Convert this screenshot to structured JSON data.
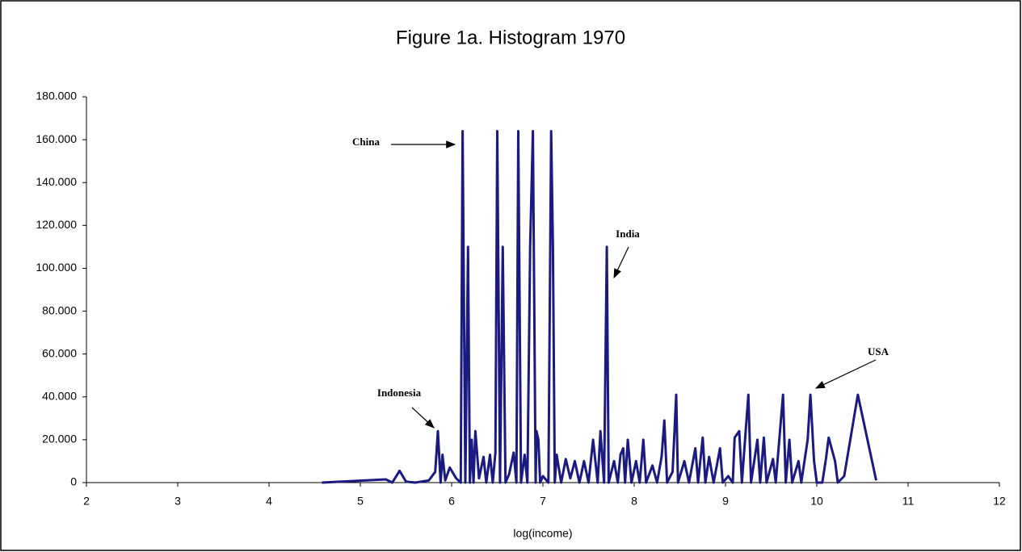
{
  "chart_data": {
    "type": "line",
    "title": "Figure 1a. Histogram 1970",
    "x_label": "log(income)",
    "x": [
      4.58,
      5.28,
      5.35,
      5.43,
      5.5,
      5.6,
      5.75,
      5.82,
      5.85,
      5.88,
      5.9,
      5.93,
      5.98,
      6.05,
      6.1,
      6.12,
      6.15,
      6.18,
      6.2,
      6.22,
      6.24,
      6.26,
      6.3,
      6.35,
      6.38,
      6.42,
      6.45,
      6.48,
      6.5,
      6.53,
      6.56,
      6.59,
      6.63,
      6.68,
      6.71,
      6.73,
      6.76,
      6.8,
      6.83,
      6.86,
      6.89,
      6.92,
      6.93,
      6.95,
      6.97,
      7.0,
      7.06,
      7.09,
      7.11,
      7.13,
      7.15,
      7.2,
      7.25,
      7.3,
      7.35,
      7.4,
      7.45,
      7.5,
      7.55,
      7.6,
      7.63,
      7.67,
      7.7,
      7.72,
      7.78,
      7.82,
      7.85,
      7.88,
      7.9,
      7.93,
      7.97,
      8.02,
      8.06,
      8.1,
      8.13,
      8.2,
      8.25,
      8.3,
      8.33,
      8.36,
      8.42,
      8.46,
      8.48,
      8.55,
      8.6,
      8.67,
      8.7,
      8.75,
      8.78,
      8.82,
      8.87,
      8.94,
      8.97,
      9.03,
      9.08,
      9.1,
      9.15,
      9.18,
      9.25,
      9.28,
      9.35,
      9.38,
      9.42,
      9.45,
      9.52,
      9.55,
      9.63,
      9.66,
      9.7,
      9.73,
      9.8,
      9.83,
      9.9,
      9.93,
      9.97,
      10.0,
      10.06,
      10.1,
      10.13,
      10.2,
      10.23,
      10.3,
      10.45,
      10.65
    ],
    "series": [
      {
        "color": "#1a1a80",
        "values": [
          0,
          1.5,
          0,
          5.5,
          0.5,
          0,
          1,
          5,
          24,
          0,
          13,
          1,
          7,
          2,
          0,
          164,
          0,
          110,
          0,
          20,
          0,
          24,
          2,
          12,
          0,
          13,
          0,
          14,
          164,
          0,
          110,
          0,
          4,
          14,
          0,
          164,
          0,
          13,
          0,
          110,
          164,
          0,
          24,
          20,
          0,
          3,
          0,
          164,
          110,
          0,
          13,
          0,
          11,
          2,
          10,
          0,
          10,
          0,
          20,
          0,
          24,
          0,
          110,
          0,
          10,
          0,
          13,
          16,
          0,
          20,
          0,
          10,
          0,
          20,
          0,
          8,
          0,
          12,
          29,
          0,
          5,
          41,
          0,
          10,
          0,
          16,
          0,
          21,
          0,
          12,
          0,
          16,
          0,
          3,
          0,
          21,
          24,
          0,
          41,
          0,
          20,
          0,
          21,
          0,
          11,
          0,
          41,
          0,
          20,
          0,
          10,
          0,
          20,
          41,
          10,
          0,
          0,
          11,
          21,
          10,
          0,
          3,
          41,
          1
        ]
      }
    ],
    "xlim": [
      2,
      12
    ],
    "xticks": [
      2,
      3,
      4,
      5,
      6,
      7,
      8,
      9,
      10,
      11,
      12
    ],
    "ylim": [
      0,
      180
    ],
    "yticks": [
      0,
      {
        "value": 20,
        "label": "20.000"
      },
      {
        "value": 40,
        "label": "40.000"
      },
      {
        "value": 60,
        "label": "60.000"
      },
      {
        "value": 80,
        "label": "80.000"
      },
      {
        "value": 100,
        "label": "100.000"
      },
      {
        "value": 120,
        "label": "120.000"
      },
      {
        "value": 140,
        "label": "140.000"
      },
      {
        "value": 160,
        "label": "160.000"
      },
      {
        "value": 180,
        "label": "180.000"
      }
    ],
    "annotations": [
      "China",
      "India",
      "Indonesia",
      "USA"
    ]
  }
}
